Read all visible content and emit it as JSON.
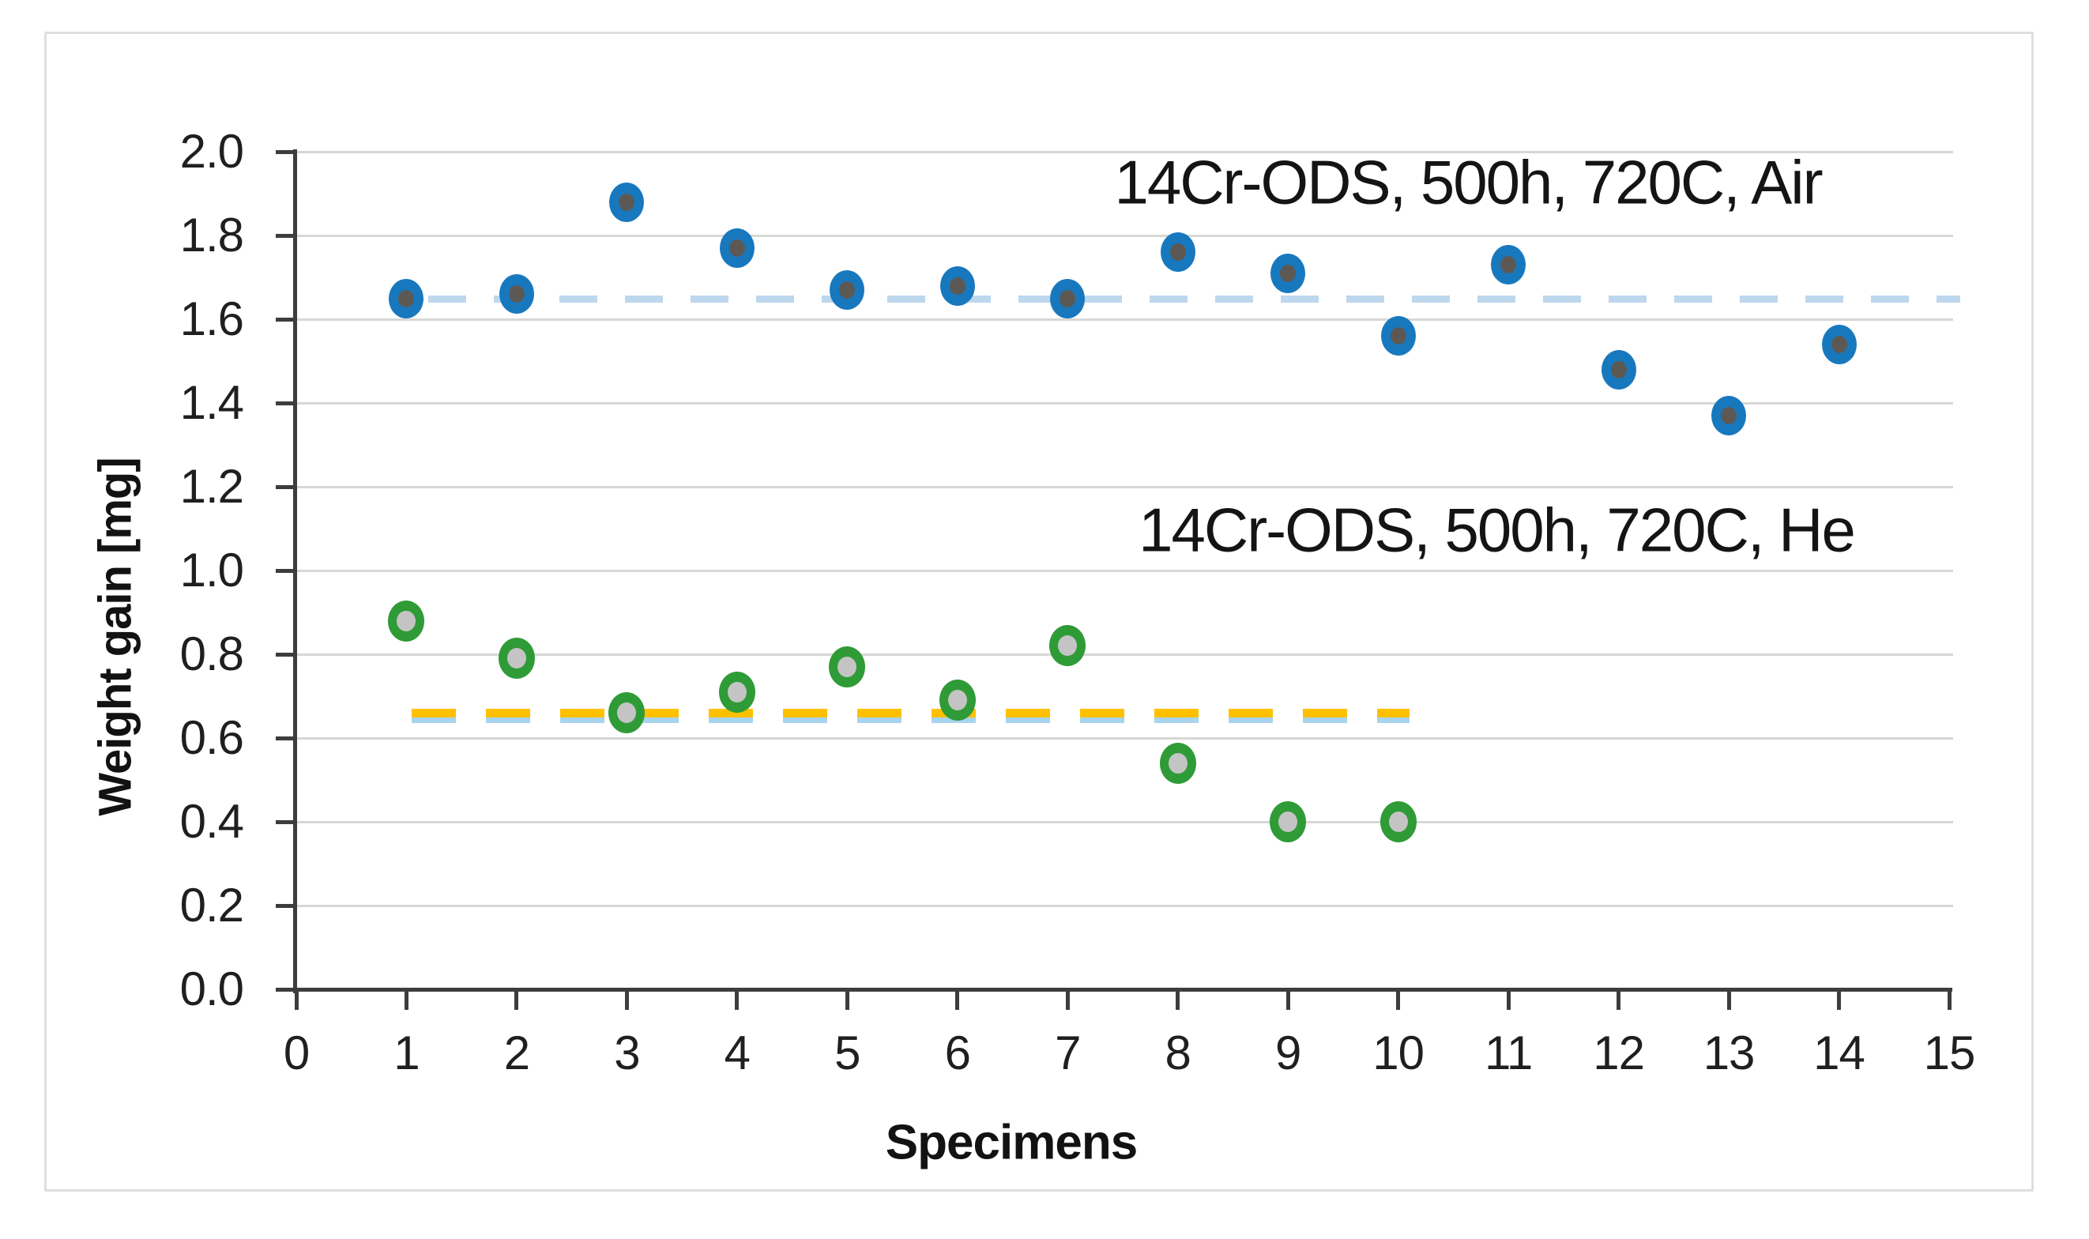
{
  "chart_data": {
    "type": "scatter",
    "title": "",
    "xlabel": "Specimens",
    "ylabel": "Weight gain [mg]",
    "xlim": [
      0,
      15
    ],
    "ylim": [
      0.0,
      2.0
    ],
    "x_ticks": [
      "0",
      "1",
      "2",
      "3",
      "4",
      "5",
      "6",
      "7",
      "8",
      "9",
      "10",
      "11",
      "12",
      "13",
      "14",
      "15"
    ],
    "y_ticks": [
      "0.0",
      "0.2",
      "0.4",
      "0.6",
      "0.8",
      "1.0",
      "1.2",
      "1.4",
      "1.6",
      "1.8",
      "2.0"
    ],
    "grid": "horizontal gridlines on",
    "legend_position": "text annotations inside plot",
    "series": [
      {
        "name": "14Cr-ODS, 500h, 720C, Air",
        "environment": "Air",
        "marker": "blue-circle-dark-gray-center",
        "x": [
          1,
          2,
          3,
          4,
          5,
          6,
          7,
          8,
          9,
          10,
          11,
          12,
          13,
          14
        ],
        "y": [
          1.65,
          1.66,
          1.88,
          1.77,
          1.67,
          1.68,
          1.65,
          1.76,
          1.71,
          1.56,
          1.73,
          1.48,
          1.37,
          1.54
        ],
        "mean_line": {
          "value": 1.65,
          "style": "dashed",
          "span_x": [
            1.2,
            15.1
          ]
        }
      },
      {
        "name": "14Cr-ODS, 500h, 720C, He",
        "environment": "He",
        "marker": "green-ring-light-gray-center",
        "x": [
          1,
          2,
          3,
          4,
          5,
          6,
          7,
          8,
          9,
          10
        ],
        "y": [
          0.88,
          0.79,
          0.66,
          0.71,
          0.77,
          0.69,
          0.82,
          0.54,
          0.4,
          0.4
        ],
        "mean_line": {
          "value": 0.66,
          "style": "dashed",
          "span_x": [
            1.05,
            10.1
          ]
        }
      }
    ],
    "colors": {
      "air_marker": "#1878BE",
      "air_marker_core": "#5C5954",
      "he_marker": "#2F9B37",
      "he_marker_core": "#C4C4C4",
      "air_mean_line": "#BDD7EE",
      "he_mean_line": "#FFC000",
      "he_mean_line_shadow": "#A9D4EE",
      "gridline": "#D7D7D5",
      "axis": "#3D3D3D",
      "text": "#1F1F1F",
      "figure_border": "#DFDFDF"
    }
  }
}
